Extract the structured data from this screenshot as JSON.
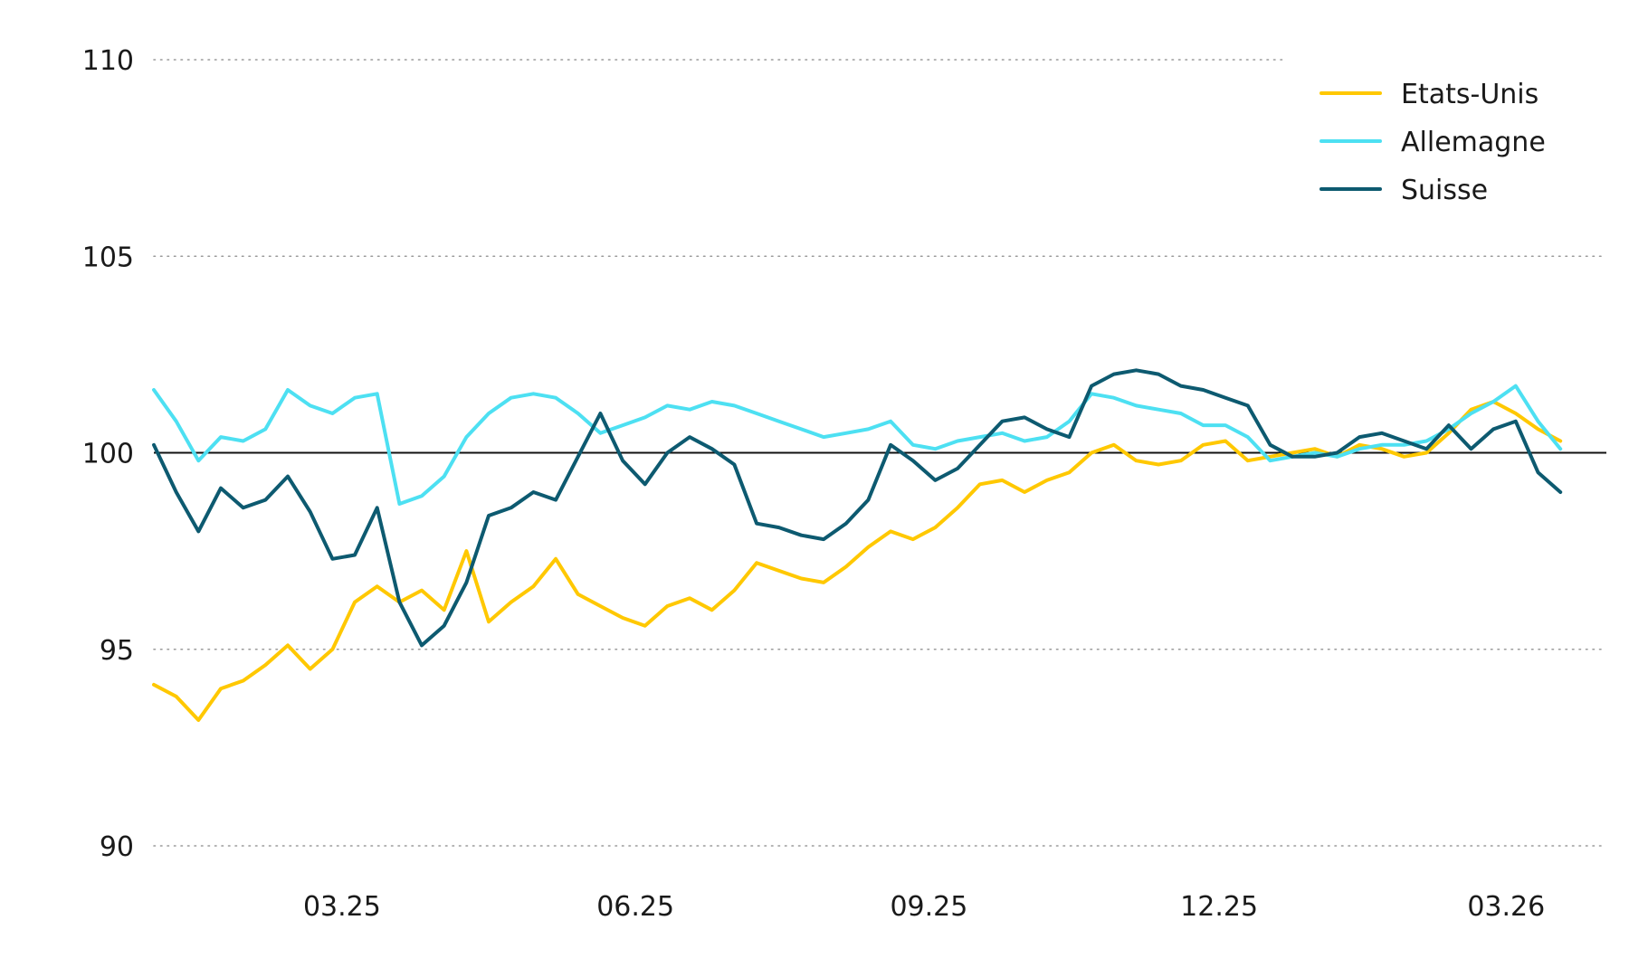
{
  "chart_data": {
    "type": "line",
    "title": "",
    "xlabel": "",
    "ylabel": "",
    "ylim": [
      90,
      110
    ],
    "xlim": [
      "2025-01-01",
      "2026-03-31"
    ],
    "yticks": [
      90,
      95,
      100,
      105,
      110
    ],
    "xticks": [
      {
        "label": "03.25",
        "date": "2025-03-01"
      },
      {
        "label": "06.25",
        "date": "2025-06-01"
      },
      {
        "label": "09.25",
        "date": "2025-09-01"
      },
      {
        "label": "12.25",
        "date": "2025-12-01"
      },
      {
        "label": "03.26",
        "date": "2026-03-01"
      }
    ],
    "grid": "horizontal-dotted",
    "reference_line": 100,
    "legend_position": "top-right",
    "series": [
      {
        "name": "Etats-Unis",
        "color": "#ffc800",
        "points": [
          [
            "2025-01-01",
            94.1
          ],
          [
            "2025-01-08",
            93.8
          ],
          [
            "2025-01-15",
            93.2
          ],
          [
            "2025-01-22",
            94.0
          ],
          [
            "2025-01-29",
            94.2
          ],
          [
            "2025-02-05",
            94.6
          ],
          [
            "2025-02-12",
            95.1
          ],
          [
            "2025-02-19",
            94.5
          ],
          [
            "2025-02-26",
            95.0
          ],
          [
            "2025-03-05",
            96.2
          ],
          [
            "2025-03-12",
            96.6
          ],
          [
            "2025-03-19",
            96.2
          ],
          [
            "2025-03-26",
            96.5
          ],
          [
            "2025-04-02",
            96.0
          ],
          [
            "2025-04-09",
            97.5
          ],
          [
            "2025-04-16",
            95.7
          ],
          [
            "2025-04-23",
            96.2
          ],
          [
            "2025-04-30",
            96.6
          ],
          [
            "2025-05-07",
            97.3
          ],
          [
            "2025-05-14",
            96.4
          ],
          [
            "2025-05-21",
            96.1
          ],
          [
            "2025-05-28",
            95.8
          ],
          [
            "2025-06-04",
            95.6
          ],
          [
            "2025-06-11",
            96.1
          ],
          [
            "2025-06-18",
            96.3
          ],
          [
            "2025-06-25",
            96.0
          ],
          [
            "2025-07-02",
            96.5
          ],
          [
            "2025-07-09",
            97.2
          ],
          [
            "2025-07-16",
            97.0
          ],
          [
            "2025-07-23",
            96.8
          ],
          [
            "2025-07-30",
            96.7
          ],
          [
            "2025-08-06",
            97.1
          ],
          [
            "2025-08-13",
            97.6
          ],
          [
            "2025-08-20",
            98.0
          ],
          [
            "2025-08-27",
            97.8
          ],
          [
            "2025-09-03",
            98.1
          ],
          [
            "2025-09-10",
            98.6
          ],
          [
            "2025-09-17",
            99.2
          ],
          [
            "2025-09-24",
            99.3
          ],
          [
            "2025-10-01",
            99.0
          ],
          [
            "2025-10-08",
            99.3
          ],
          [
            "2025-10-15",
            99.5
          ],
          [
            "2025-10-22",
            100.0
          ],
          [
            "2025-10-29",
            100.2
          ],
          [
            "2025-11-05",
            99.8
          ],
          [
            "2025-11-12",
            99.7
          ],
          [
            "2025-11-19",
            99.8
          ],
          [
            "2025-11-26",
            100.2
          ],
          [
            "2025-12-03",
            100.3
          ],
          [
            "2025-12-10",
            99.8
          ],
          [
            "2025-12-17",
            99.9
          ],
          [
            "2025-12-24",
            100.0
          ],
          [
            "2025-12-31",
            100.1
          ],
          [
            "2026-01-07",
            99.9
          ],
          [
            "2026-01-14",
            100.2
          ],
          [
            "2026-01-21",
            100.1
          ],
          [
            "2026-01-28",
            99.9
          ],
          [
            "2026-02-04",
            100.0
          ],
          [
            "2026-02-11",
            100.5
          ],
          [
            "2026-02-18",
            101.1
          ],
          [
            "2026-02-25",
            101.3
          ],
          [
            "2026-03-04",
            101.0
          ],
          [
            "2026-03-11",
            100.6
          ],
          [
            "2026-03-18",
            100.3
          ]
        ]
      },
      {
        "name": "Allemagne",
        "color": "#4de0f2",
        "points": [
          [
            "2025-01-01",
            101.6
          ],
          [
            "2025-01-08",
            100.8
          ],
          [
            "2025-01-15",
            99.8
          ],
          [
            "2025-01-22",
            100.4
          ],
          [
            "2025-01-29",
            100.3
          ],
          [
            "2025-02-05",
            100.6
          ],
          [
            "2025-02-12",
            101.6
          ],
          [
            "2025-02-19",
            101.2
          ],
          [
            "2025-02-26",
            101.0
          ],
          [
            "2025-03-05",
            101.4
          ],
          [
            "2025-03-12",
            101.5
          ],
          [
            "2025-03-19",
            98.7
          ],
          [
            "2025-03-26",
            98.9
          ],
          [
            "2025-04-02",
            99.4
          ],
          [
            "2025-04-09",
            100.4
          ],
          [
            "2025-04-16",
            101.0
          ],
          [
            "2025-04-23",
            101.4
          ],
          [
            "2025-04-30",
            101.5
          ],
          [
            "2025-05-07",
            101.4
          ],
          [
            "2025-05-14",
            101.0
          ],
          [
            "2025-05-21",
            100.5
          ],
          [
            "2025-05-28",
            100.7
          ],
          [
            "2025-06-04",
            100.9
          ],
          [
            "2025-06-11",
            101.2
          ],
          [
            "2025-06-18",
            101.1
          ],
          [
            "2025-06-25",
            101.3
          ],
          [
            "2025-07-02",
            101.2
          ],
          [
            "2025-07-09",
            101.0
          ],
          [
            "2025-07-16",
            100.8
          ],
          [
            "2025-07-23",
            100.6
          ],
          [
            "2025-07-30",
            100.4
          ],
          [
            "2025-08-06",
            100.5
          ],
          [
            "2025-08-13",
            100.6
          ],
          [
            "2025-08-20",
            100.8
          ],
          [
            "2025-08-27",
            100.2
          ],
          [
            "2025-09-03",
            100.1
          ],
          [
            "2025-09-10",
            100.3
          ],
          [
            "2025-09-17",
            100.4
          ],
          [
            "2025-09-24",
            100.5
          ],
          [
            "2025-10-01",
            100.3
          ],
          [
            "2025-10-08",
            100.4
          ],
          [
            "2025-10-15",
            100.8
          ],
          [
            "2025-10-22",
            101.5
          ],
          [
            "2025-10-29",
            101.4
          ],
          [
            "2025-11-05",
            101.2
          ],
          [
            "2025-11-12",
            101.1
          ],
          [
            "2025-11-19",
            101.0
          ],
          [
            "2025-11-26",
            100.7
          ],
          [
            "2025-12-03",
            100.7
          ],
          [
            "2025-12-10",
            100.4
          ],
          [
            "2025-12-17",
            99.8
          ],
          [
            "2025-12-24",
            99.9
          ],
          [
            "2025-12-31",
            100.0
          ],
          [
            "2026-01-07",
            99.9
          ],
          [
            "2026-01-14",
            100.1
          ],
          [
            "2026-01-21",
            100.2
          ],
          [
            "2026-01-28",
            100.2
          ],
          [
            "2026-02-04",
            100.3
          ],
          [
            "2026-02-11",
            100.6
          ],
          [
            "2026-02-18",
            101.0
          ],
          [
            "2026-02-25",
            101.3
          ],
          [
            "2026-03-04",
            101.7
          ],
          [
            "2026-03-11",
            100.8
          ],
          [
            "2026-03-18",
            100.1
          ]
        ]
      },
      {
        "name": "Suisse",
        "color": "#0d5a70",
        "points": [
          [
            "2025-01-01",
            100.2
          ],
          [
            "2025-01-08",
            99.0
          ],
          [
            "2025-01-15",
            98.0
          ],
          [
            "2025-01-22",
            99.1
          ],
          [
            "2025-01-29",
            98.6
          ],
          [
            "2025-02-05",
            98.8
          ],
          [
            "2025-02-12",
            99.4
          ],
          [
            "2025-02-19",
            98.5
          ],
          [
            "2025-02-26",
            97.3
          ],
          [
            "2025-03-05",
            97.4
          ],
          [
            "2025-03-12",
            98.6
          ],
          [
            "2025-03-19",
            96.2
          ],
          [
            "2025-03-26",
            95.1
          ],
          [
            "2025-04-02",
            95.6
          ],
          [
            "2025-04-09",
            96.7
          ],
          [
            "2025-04-16",
            98.4
          ],
          [
            "2025-04-23",
            98.6
          ],
          [
            "2025-04-30",
            99.0
          ],
          [
            "2025-05-07",
            98.8
          ],
          [
            "2025-05-14",
            99.9
          ],
          [
            "2025-05-21",
            101.0
          ],
          [
            "2025-05-28",
            99.8
          ],
          [
            "2025-06-04",
            99.2
          ],
          [
            "2025-06-11",
            100.0
          ],
          [
            "2025-06-18",
            100.4
          ],
          [
            "2025-06-25",
            100.1
          ],
          [
            "2025-07-02",
            99.7
          ],
          [
            "2025-07-09",
            98.2
          ],
          [
            "2025-07-16",
            98.1
          ],
          [
            "2025-07-23",
            97.9
          ],
          [
            "2025-07-30",
            97.8
          ],
          [
            "2025-08-06",
            98.2
          ],
          [
            "2025-08-13",
            98.8
          ],
          [
            "2025-08-20",
            100.2
          ],
          [
            "2025-08-27",
            99.8
          ],
          [
            "2025-09-03",
            99.3
          ],
          [
            "2025-09-10",
            99.6
          ],
          [
            "2025-09-17",
            100.2
          ],
          [
            "2025-09-24",
            100.8
          ],
          [
            "2025-10-01",
            100.9
          ],
          [
            "2025-10-08",
            100.6
          ],
          [
            "2025-10-15",
            100.4
          ],
          [
            "2025-10-22",
            101.7
          ],
          [
            "2025-10-29",
            102.0
          ],
          [
            "2025-11-05",
            102.1
          ],
          [
            "2025-11-12",
            102.0
          ],
          [
            "2025-11-19",
            101.7
          ],
          [
            "2025-11-26",
            101.6
          ],
          [
            "2025-12-03",
            101.4
          ],
          [
            "2025-12-10",
            101.2
          ],
          [
            "2025-12-17",
            100.2
          ],
          [
            "2025-12-24",
            99.9
          ],
          [
            "2025-12-31",
            99.9
          ],
          [
            "2026-01-07",
            100.0
          ],
          [
            "2026-01-14",
            100.4
          ],
          [
            "2026-01-21",
            100.5
          ],
          [
            "2026-01-28",
            100.3
          ],
          [
            "2026-02-04",
            100.1
          ],
          [
            "2026-02-11",
            100.7
          ],
          [
            "2026-02-18",
            100.1
          ],
          [
            "2026-02-25",
            100.6
          ],
          [
            "2026-03-04",
            100.8
          ],
          [
            "2026-03-11",
            99.5
          ],
          [
            "2026-03-18",
            99.0
          ]
        ]
      }
    ]
  }
}
